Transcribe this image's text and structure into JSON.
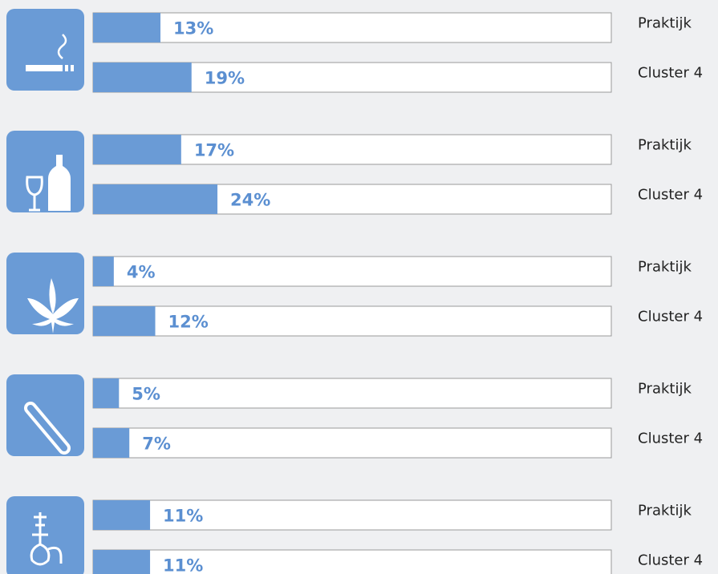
{
  "chart_data": {
    "type": "bar",
    "orientation": "horizontal",
    "categories": [
      null,
      null,
      null,
      null,
      null
    ],
    "xlim": [
      0,
      100
    ],
    "color": "#6a9bd6",
    "series": [
      {
        "name": "Praktijk",
        "values": [
          13,
          17,
          4,
          5,
          11
        ],
        "value_labels": [
          "13%",
          "17%",
          "4%",
          "5%",
          "11%"
        ]
      },
      {
        "name": "Cluster 4",
        "values": [
          19,
          24,
          12,
          7,
          11
        ],
        "value_labels": [
          "19%",
          "24%",
          "12%",
          "7%",
          "11%"
        ]
      }
    ]
  }
}
